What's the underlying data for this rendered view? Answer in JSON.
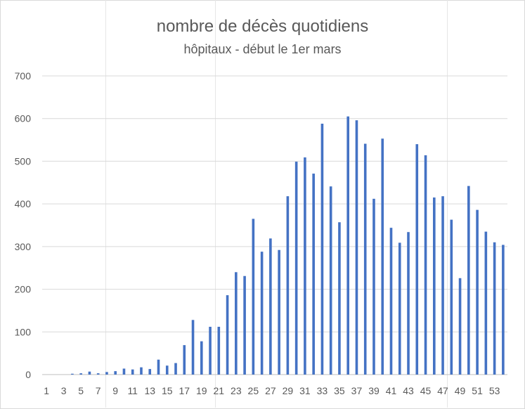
{
  "chart_data": {
    "type": "bar",
    "title": "nombre de décès quotidiens",
    "subtitle": "hôpitaux - début le 1er mars",
    "xlabel": "",
    "ylabel": "",
    "ylim": [
      0,
      700
    ],
    "yticks": [
      0,
      100,
      200,
      300,
      400,
      500,
      600,
      700
    ],
    "xtick_labels": [
      "1",
      "3",
      "5",
      "7",
      "9",
      "11",
      "13",
      "15",
      "17",
      "19",
      "21",
      "23",
      "25",
      "27",
      "29",
      "31",
      "33",
      "35",
      "37",
      "39",
      "41",
      "43",
      "45",
      "47",
      "49",
      "51",
      "53"
    ],
    "grid": "horizontal",
    "bar_color": "#4472c4",
    "categories": [
      1,
      2,
      3,
      4,
      5,
      6,
      7,
      8,
      9,
      10,
      11,
      12,
      13,
      14,
      15,
      16,
      17,
      18,
      19,
      20,
      21,
      22,
      23,
      24,
      25,
      26,
      27,
      28,
      29,
      30,
      31,
      32,
      33,
      34,
      35,
      36,
      37,
      38,
      39,
      40,
      41,
      42,
      43,
      44,
      45,
      46,
      47,
      48,
      49,
      50,
      51,
      52,
      53,
      54
    ],
    "values": [
      0,
      0,
      0,
      2,
      3,
      7,
      3,
      6,
      8,
      14,
      12,
      17,
      13,
      35,
      21,
      27,
      69,
      128,
      78,
      112,
      112,
      186,
      240,
      231,
      365,
      288,
      319,
      292,
      418,
      499,
      509,
      471,
      588,
      441,
      357,
      605,
      596,
      541,
      412,
      553,
      344,
      309,
      334,
      540,
      514,
      415,
      418,
      363,
      226,
      442,
      386,
      335,
      310,
      304
    ]
  }
}
